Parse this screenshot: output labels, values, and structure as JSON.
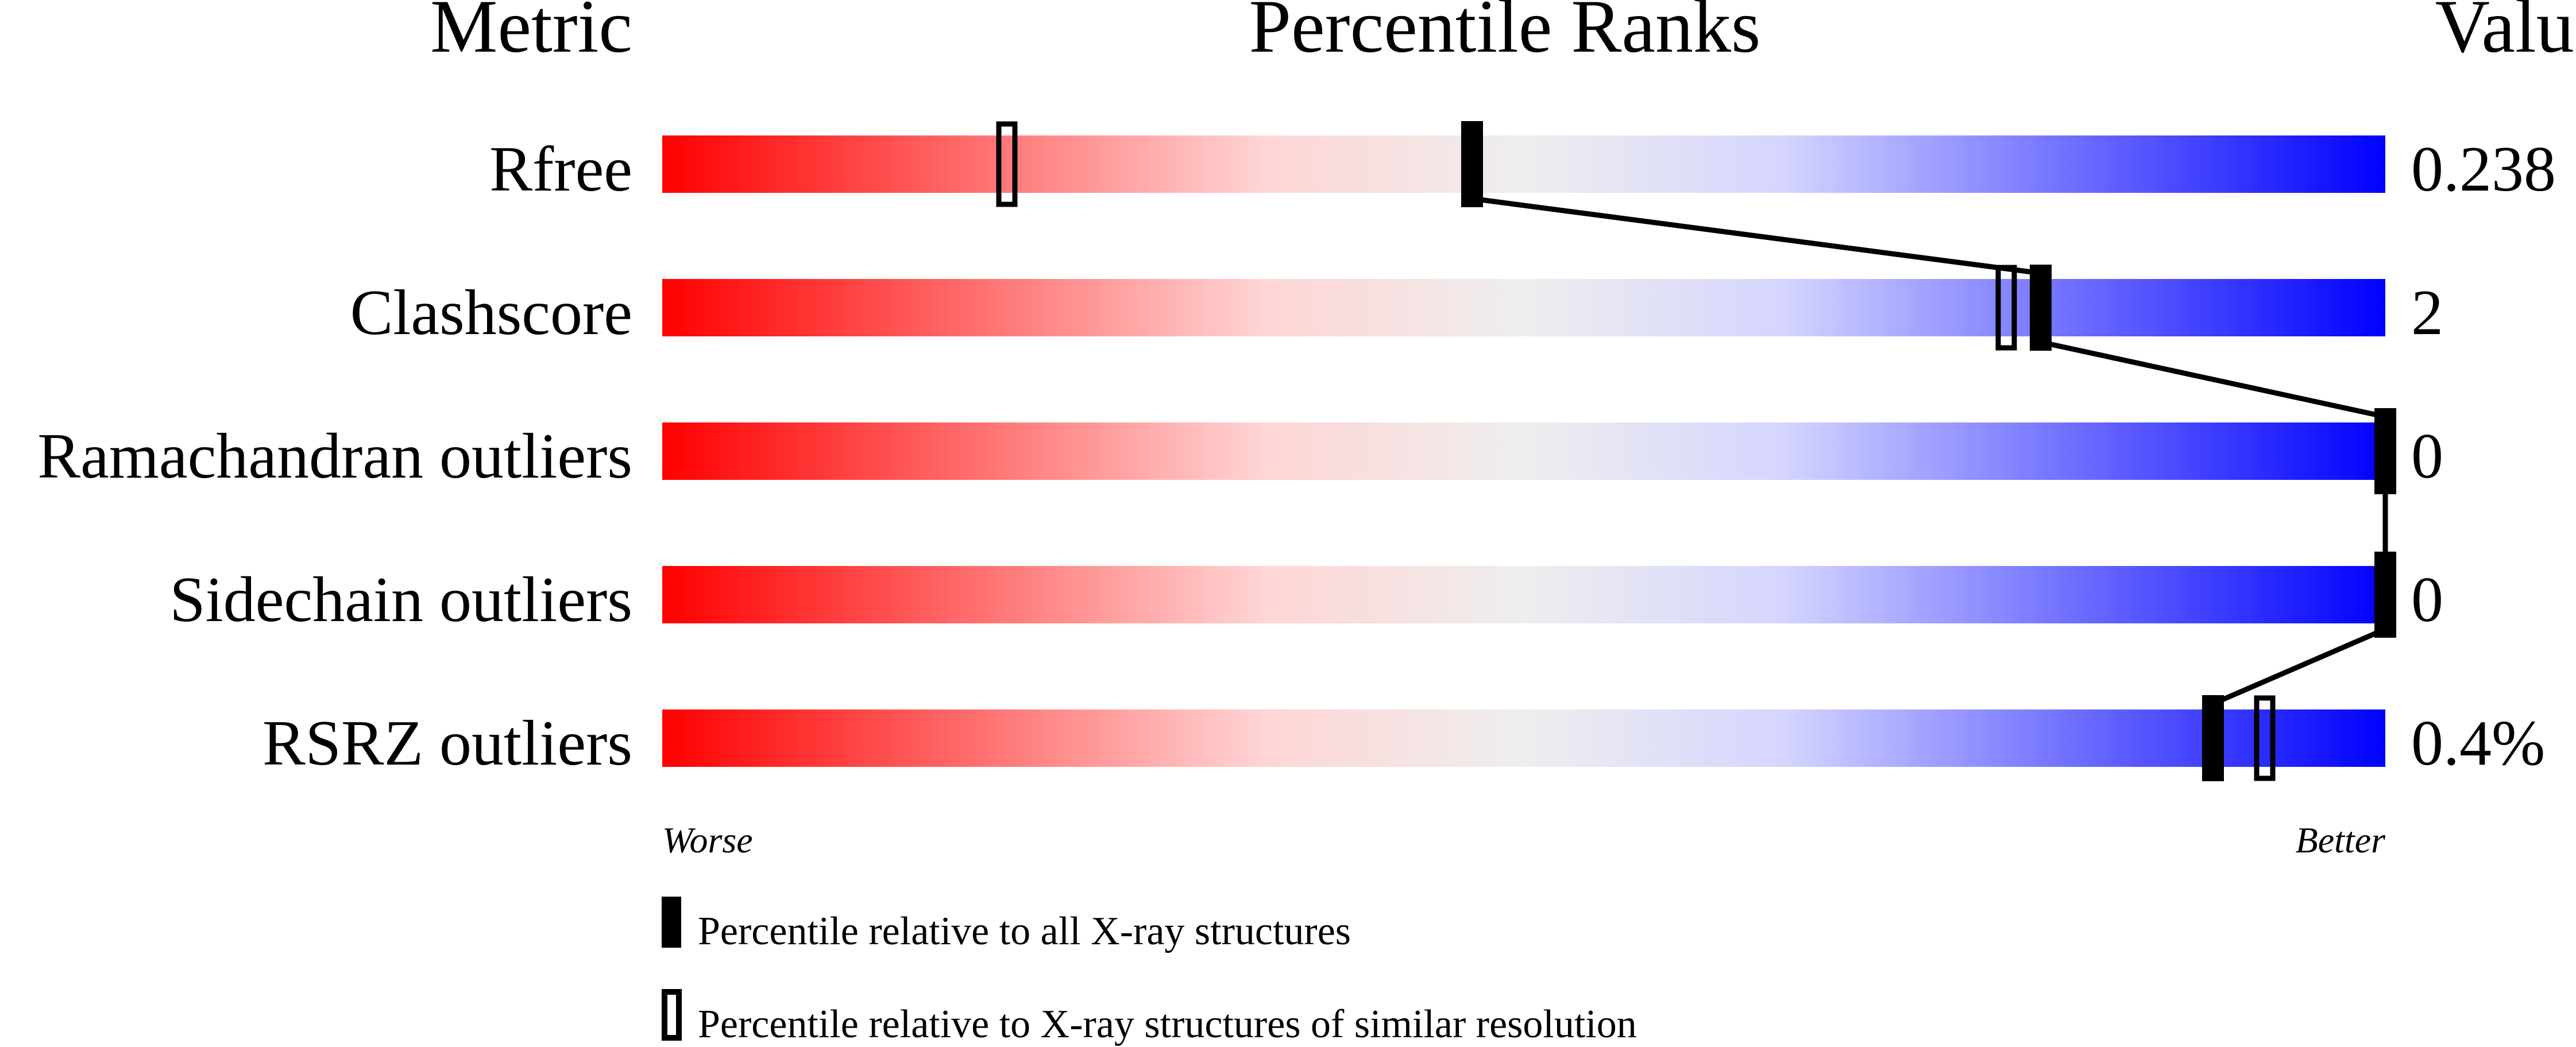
{
  "chart_data": {
    "type": "percentile-slider",
    "headers": {
      "metric": "Metric",
      "ranks": "Percentile Ranks",
      "value": "Value"
    },
    "axis": {
      "left_label": "Worse",
      "right_label": "Better",
      "range": [
        0,
        100
      ]
    },
    "gradient_colors": [
      "#ff0000",
      "#ffd5d5",
      "#eeeeee",
      "#d5d5ff",
      "#0000ff"
    ],
    "metrics": [
      {
        "name": "Rfree",
        "value": "0.238",
        "percentile_all": 47,
        "percentile_similar": 20
      },
      {
        "name": "Clashscore",
        "value": "2",
        "percentile_all": 80,
        "percentile_similar": 78
      },
      {
        "name": "Ramachandran outliers",
        "value": "0",
        "percentile_all": 100,
        "percentile_similar": null
      },
      {
        "name": "Sidechain outliers",
        "value": "0",
        "percentile_all": 100,
        "percentile_similar": null
      },
      {
        "name": "RSRZ outliers",
        "value": "0.4%",
        "percentile_all": 90,
        "percentile_similar": 93
      }
    ],
    "legend": [
      {
        "marker": "filled",
        "label": "Percentile relative to all X-ray structures"
      },
      {
        "marker": "hollow",
        "label": "Percentile relative to X-ray structures of similar resolution"
      }
    ]
  }
}
